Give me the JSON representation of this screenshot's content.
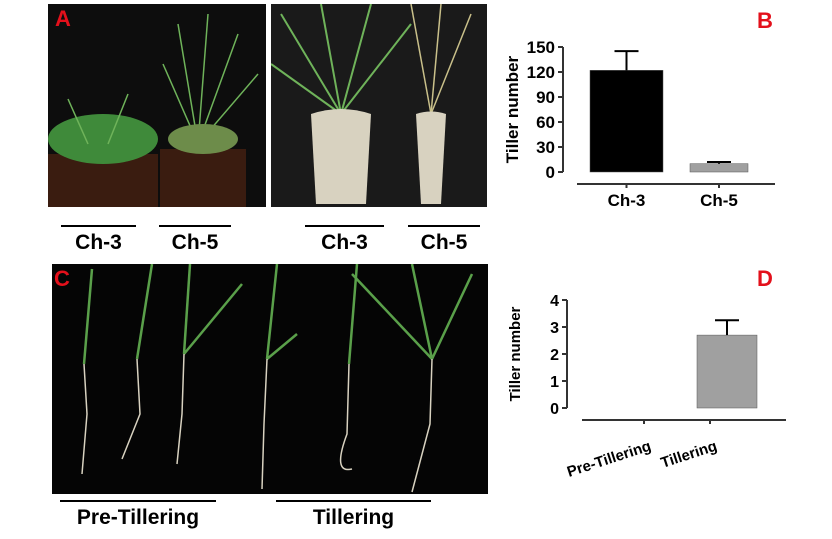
{
  "panels": {
    "a": {
      "letter": "A",
      "labels": [
        "Ch-3",
        "Ch-5",
        "Ch-3",
        "Ch-5"
      ]
    },
    "b": {
      "letter": "B"
    },
    "c": {
      "letter": "C",
      "labels": [
        "Pre-Tillering",
        "Tillering"
      ]
    },
    "d": {
      "letter": "D"
    }
  },
  "colors": {
    "letter": "#e3101b",
    "bar_dark": "#000000",
    "bar_gray": "#a0a0a0"
  },
  "chart_data": [
    {
      "type": "bar",
      "panel": "B",
      "categories": [
        "Ch-3",
        "Ch-5"
      ],
      "values": [
        122,
        10
      ],
      "error_upper": [
        145,
        12
      ],
      "bar_colors": [
        "#000000",
        "#a0a0a0"
      ],
      "ylabel": "Tiller number",
      "ylim": [
        0,
        150
      ],
      "yticks": [
        0,
        30,
        60,
        90,
        120,
        150
      ]
    },
    {
      "type": "bar",
      "panel": "D",
      "categories": [
        "Pre-Tillering",
        "Tillering"
      ],
      "values": [
        0,
        2.7
      ],
      "error_upper": [
        0,
        3.25
      ],
      "bar_colors": [
        "#a0a0a0",
        "#a0a0a0"
      ],
      "ylabel": "Tiller number",
      "ylim": [
        0,
        4
      ],
      "yticks": [
        0,
        1,
        2,
        3,
        4
      ]
    }
  ]
}
